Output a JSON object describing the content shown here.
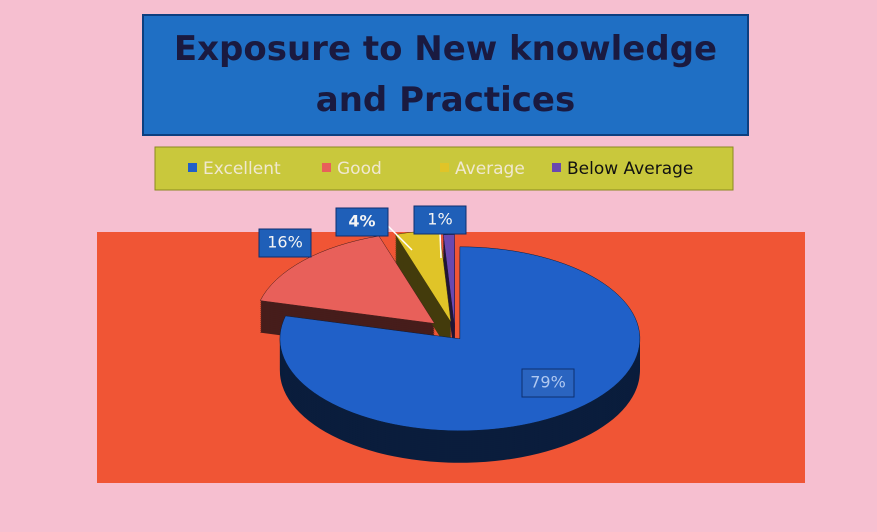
{
  "chart_data": {
    "type": "pie",
    "title": "Exposure to New knowledge and Practices",
    "categories": [
      "Excellent",
      "Good",
      "Average",
      "Below Average"
    ],
    "values": [
      79,
      16,
      4,
      1
    ],
    "value_labels": [
      "79%",
      "16%",
      "4%",
      "1%"
    ],
    "colors": [
      "#2060c8",
      "#e8605a",
      "#e0c428",
      "#6a48b0"
    ],
    "legend": "top"
  }
}
